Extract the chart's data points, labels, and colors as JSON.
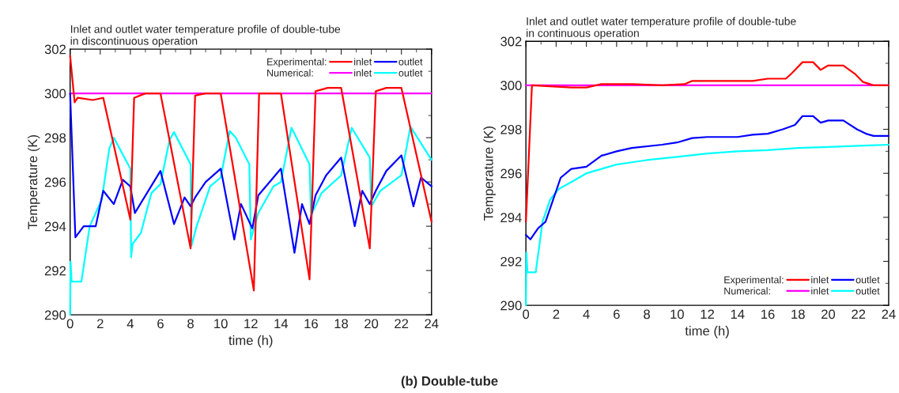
{
  "chart_data": [
    {
      "type": "line",
      "title": "Inlet and outlet water temperature profile of double-tube\nin discontinuous operation",
      "xlabel": "time (h)",
      "ylabel": "Temperature (K)",
      "xlim": [
        0,
        24
      ],
      "ylim": [
        290,
        302
      ],
      "xticks": [
        0,
        2,
        4,
        6,
        8,
        10,
        12,
        14,
        16,
        18,
        20,
        22,
        24
      ],
      "yticks": [
        290,
        292,
        294,
        296,
        298,
        300,
        302
      ],
      "grid": false,
      "legend": "top right",
      "annotations": [
        "Experimental:",
        "Numerical:"
      ],
      "series": [
        {
          "name": "inlet",
          "color": "#ff0000",
          "x": [
            0,
            0.3,
            0.5,
            1.5,
            2.2,
            4.0,
            4.25,
            5.0,
            6.0,
            8.0,
            8.3,
            9.0,
            10.0,
            12.2,
            12.55,
            14.0,
            15.9,
            16.3,
            17.1,
            18.0,
            19.9,
            20.3,
            21.0,
            22.0,
            24
          ],
          "values": [
            301.7,
            299.6,
            299.8,
            299.7,
            299.8,
            294.3,
            299.8,
            300.0,
            300.0,
            293.0,
            299.9,
            300.0,
            300.0,
            291.1,
            300.0,
            300.0,
            291.6,
            300.1,
            300.25,
            300.25,
            293.0,
            300.1,
            300.25,
            300.25,
            294.2
          ]
        },
        {
          "name": "outlet",
          "color": "#0000ff",
          "x": [
            0,
            0.35,
            0.9,
            1.7,
            2.2,
            2.9,
            3.5,
            4.0,
            4.3,
            6.0,
            6.9,
            7.6,
            8.0,
            8.3,
            9.0,
            10.0,
            10.9,
            11.35,
            12.1,
            12.5,
            14.0,
            14.9,
            15.4,
            15.9,
            16.3,
            17.0,
            18.0,
            18.9,
            19.4,
            19.9,
            20.3,
            21.0,
            22.0,
            22.8,
            23.3,
            24
          ],
          "values": [
            300.0,
            293.5,
            294.0,
            294.0,
            295.6,
            295.0,
            296.1,
            295.8,
            294.6,
            296.5,
            294.1,
            295.3,
            294.9,
            295.3,
            296.0,
            296.6,
            293.4,
            295.0,
            293.9,
            295.4,
            296.6,
            292.8,
            295.0,
            294.1,
            295.4,
            296.3,
            297.1,
            294.0,
            295.6,
            295.0,
            295.6,
            296.5,
            297.2,
            294.9,
            296.2,
            295.8
          ]
        },
        {
          "name": "inlet",
          "color": "#ff00ff",
          "x": [
            0,
            24
          ],
          "values": [
            300,
            300
          ]
        },
        {
          "name": "outlet",
          "color": "#00ffff",
          "x": [
            0,
            0.03,
            0.1,
            0.75,
            1.3,
            2.1,
            2.6,
            2.9,
            4.0,
            4.05,
            4.15,
            4.7,
            5.4,
            6.0,
            6.6,
            6.9,
            8.0,
            8.05,
            8.4,
            9.3,
            10.0,
            10.6,
            11.0,
            11.9,
            12.0,
            12.5,
            13.5,
            14.0,
            14.7,
            15.9,
            16.0,
            16.7,
            18.0,
            18.7,
            19.9,
            20.0,
            20.6,
            22.0,
            22.6,
            24
          ],
          "values": [
            290.0,
            292.4,
            291.5,
            291.5,
            294.0,
            295.2,
            297.5,
            298.0,
            296.6,
            292.6,
            293.2,
            293.7,
            295.5,
            295.9,
            297.9,
            298.25,
            296.8,
            293.1,
            294.0,
            295.8,
            296.2,
            298.3,
            298.0,
            296.8,
            293.4,
            294.6,
            295.8,
            296.0,
            298.45,
            296.8,
            294.5,
            295.5,
            296.3,
            298.45,
            297.1,
            294.9,
            295.6,
            296.3,
            298.5,
            297.0
          ]
        }
      ]
    },
    {
      "type": "line",
      "title": "Inlet and outlet water temperature profile of double-tube\nin continuous operation",
      "xlabel": "time (h)",
      "ylabel": "Temperature (K)",
      "xlim": [
        0,
        24
      ],
      "ylim": [
        290,
        302
      ],
      "xticks": [
        0,
        2,
        4,
        6,
        8,
        10,
        12,
        14,
        16,
        18,
        20,
        22,
        24
      ],
      "yticks": [
        290,
        292,
        294,
        296,
        298,
        300,
        302
      ],
      "grid": false,
      "legend": "bottom right",
      "annotations": [
        "Experimental:",
        "Numerical:",
        "(b) Double-tube"
      ],
      "series": [
        {
          "name": "inlet",
          "color": "#ff0000",
          "x": [
            0,
            0.4,
            3.0,
            4.0,
            5.0,
            7.0,
            9.0,
            10.5,
            11.0,
            15.0,
            16.0,
            17.2,
            17.6,
            18.3,
            19.0,
            19.5,
            20.0,
            21.0,
            21.8,
            22.3,
            23.0,
            24
          ],
          "values": [
            293.8,
            300.0,
            299.9,
            299.9,
            300.05,
            300.05,
            300.0,
            300.05,
            300.2,
            300.2,
            300.3,
            300.3,
            300.55,
            301.05,
            301.05,
            300.7,
            300.9,
            300.9,
            300.5,
            300.15,
            300.0,
            300.0
          ]
        },
        {
          "name": "outlet",
          "color": "#0000ff",
          "x": [
            0,
            0.3,
            0.8,
            1.3,
            1.9,
            2.3,
            3.0,
            4.0,
            5.0,
            6.0,
            7.0,
            9.0,
            10.0,
            11.0,
            12.0,
            14.0,
            15.0,
            16.0,
            17.0,
            17.8,
            18.3,
            19.0,
            19.5,
            20.0,
            21.0,
            21.9,
            22.5,
            23.0,
            24
          ],
          "values": [
            293.2,
            293.0,
            293.5,
            293.8,
            295.0,
            295.8,
            296.2,
            296.3,
            296.8,
            297.0,
            297.15,
            297.3,
            297.4,
            297.6,
            297.65,
            297.65,
            297.75,
            297.8,
            298.0,
            298.2,
            298.6,
            298.6,
            298.3,
            298.4,
            298.4,
            298.0,
            297.8,
            297.7,
            297.7
          ]
        },
        {
          "name": "inlet",
          "color": "#ff00ff",
          "x": [
            0,
            24
          ],
          "values": [
            300,
            300
          ]
        },
        {
          "name": "outlet",
          "color": "#00ffff",
          "x": [
            0,
            0.03,
            0.1,
            0.65,
            1.1,
            1.6,
            2.2,
            3.0,
            4.0,
            5.0,
            6.0,
            7.0,
            8.0,
            10.0,
            12.0,
            14.0,
            16.0,
            18.0,
            20.0,
            22.0,
            24
          ],
          "values": [
            290.0,
            292.4,
            291.5,
            291.5,
            293.8,
            294.8,
            295.3,
            295.6,
            296.0,
            296.2,
            296.4,
            296.5,
            296.6,
            296.75,
            296.9,
            297.0,
            297.05,
            297.15,
            297.2,
            297.25,
            297.3
          ]
        }
      ]
    }
  ]
}
